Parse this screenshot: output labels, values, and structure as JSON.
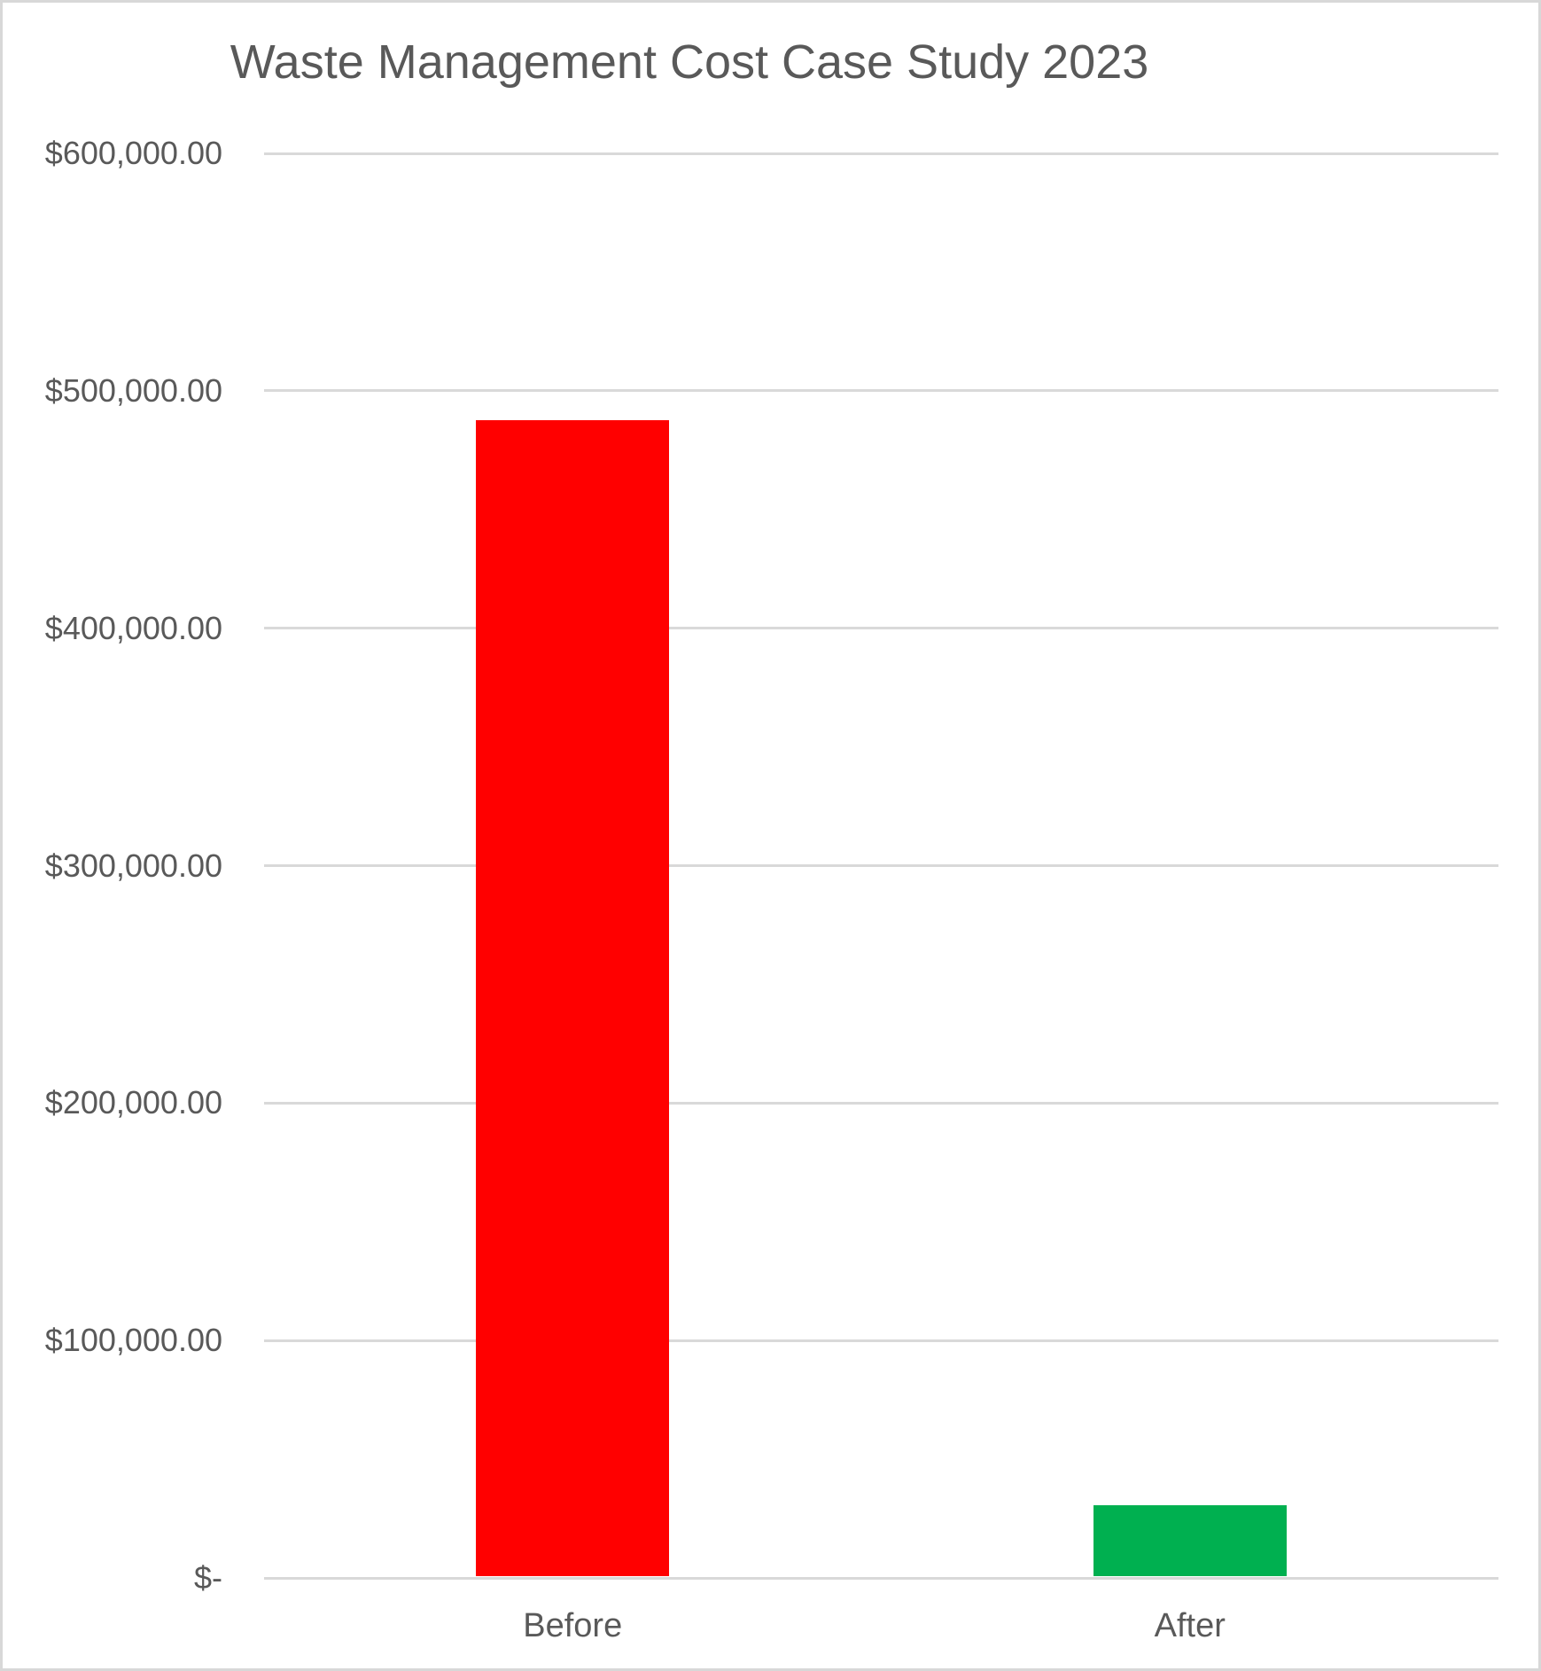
{
  "chart_data": {
    "type": "bar",
    "title": "Waste Management Cost Case Study 2023",
    "categories": [
      "Before",
      "After"
    ],
    "values": [
      487000,
      30000
    ],
    "bar_colors": [
      "#FF0000",
      "#00B050"
    ],
    "xlabel": "",
    "ylabel": "",
    "ylim": [
      0,
      600000
    ],
    "ytick_interval": 100000,
    "ytick_labels": [
      "$-",
      "$100,000.00",
      "$200,000.00",
      "$300,000.00",
      "$400,000.00",
      "$500,000.00",
      "$600,000.00"
    ],
    "grid": true,
    "legend_position": "none"
  },
  "style": {
    "title_color": "#595959",
    "axis_text_color": "#595959",
    "gridline_color": "#D9D9D9",
    "border_color": "#D8D8D8",
    "background": "#FFFFFF"
  }
}
